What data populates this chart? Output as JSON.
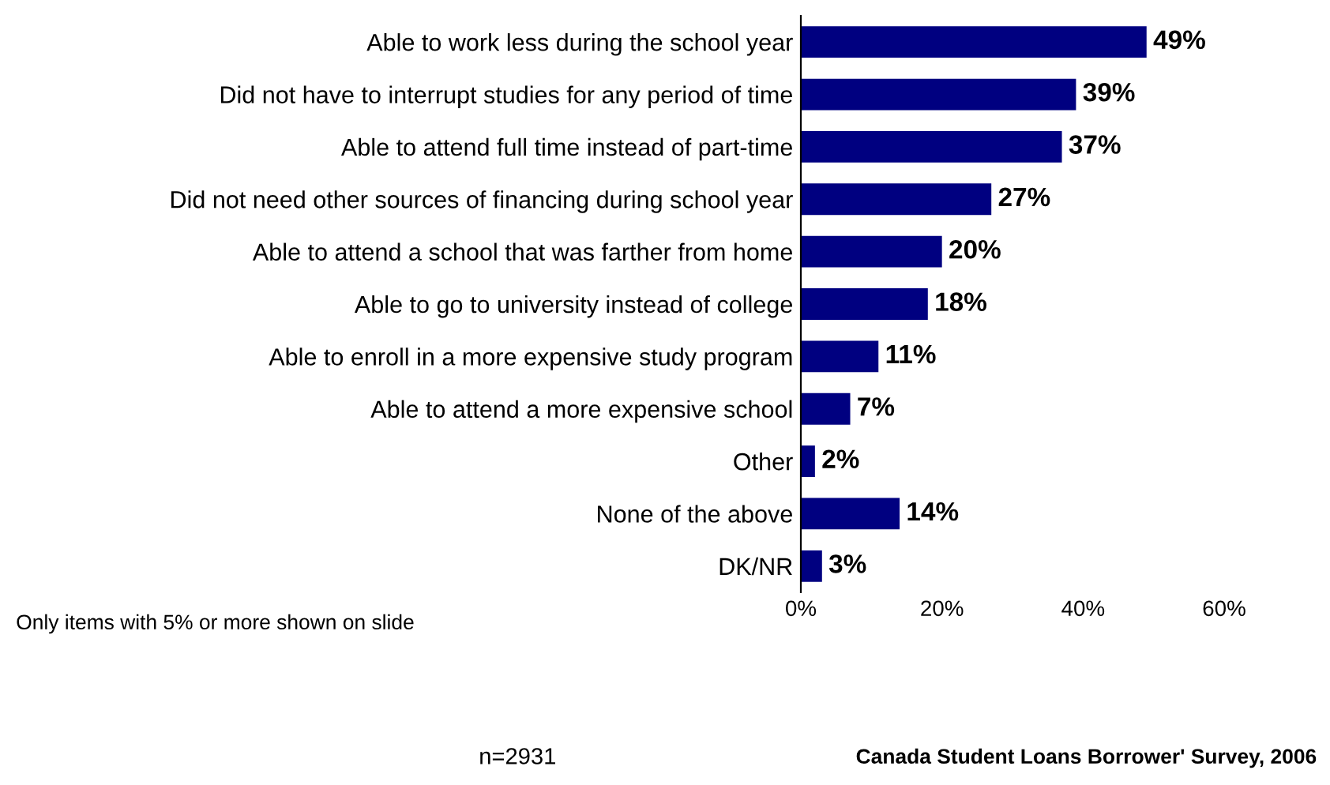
{
  "chart_data": {
    "type": "bar",
    "orientation": "horizontal",
    "categories": [
      "Able to work less during the school year",
      "Did not have to interrupt studies for any period of time",
      "Able to attend full time instead of part-time",
      "Did not need other sources of financing during school year",
      "Able to attend a school that was farther from home",
      "Able to go to university instead of college",
      "Able to enroll in a more expensive study program",
      "Able to attend a more expensive school",
      "Other",
      "None of the above",
      "DK/NR"
    ],
    "values": [
      49,
      39,
      37,
      27,
      20,
      18,
      11,
      7,
      2,
      14,
      3
    ],
    "value_labels": [
      "49%",
      "39%",
      "37%",
      "27%",
      "20%",
      "18%",
      "11%",
      "7%",
      "2%",
      "14%",
      "3%"
    ],
    "color": "#000080",
    "xlim": [
      0,
      60
    ],
    "xticks": [
      {
        "value": 0,
        "label": "0%"
      },
      {
        "value": 20,
        "label": "20%"
      },
      {
        "value": 40,
        "label": "40%"
      },
      {
        "value": 60,
        "label": "60%"
      }
    ],
    "grid": false,
    "legend": false,
    "annotations": [
      "Only items with 5% or more shown on slide",
      "n=2931",
      "Canada Student Loans Borrower' Survey, 2006"
    ]
  }
}
